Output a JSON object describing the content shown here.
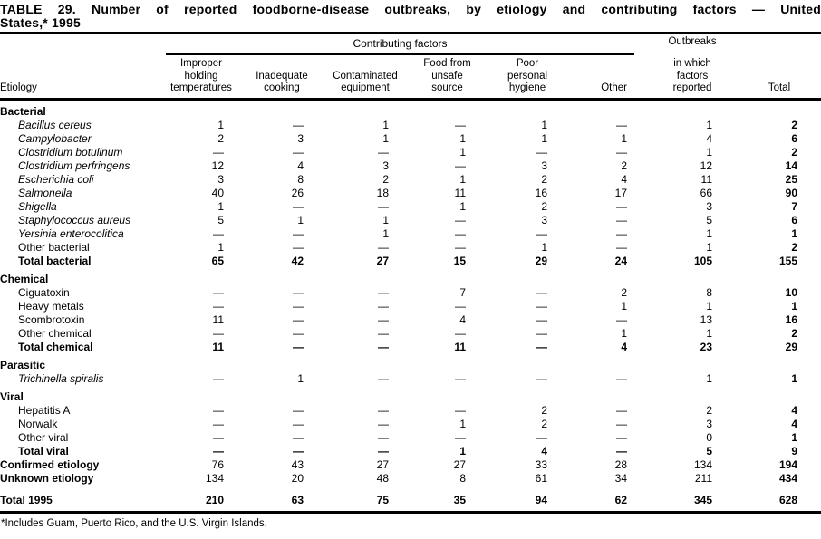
{
  "title": {
    "line1": "TABLE 29. Number of reported foodborne-disease outbreaks, by etiology and contributing factors — United",
    "line2": "States,* 1995"
  },
  "header": {
    "etiology": "Etiology",
    "contributing_factors": "Contributing factors",
    "factor_columns": [
      "Improper\nholding\ntemperatures",
      "Inadequate\ncooking",
      "Contaminated\nequipment",
      "Food from\nunsafe\nsource",
      "Poor\npersonal\nhygiene",
      "Other"
    ],
    "outbreaks_top": "Outbreaks",
    "outbreaks_rest": "in which\nfactors\nreported",
    "total": "Total"
  },
  "rows": [
    {
      "type": "section",
      "label": "Bacterial"
    },
    {
      "type": "item",
      "italic": true,
      "label": "Bacillus cereus",
      "values": [
        "1",
        "—",
        "1",
        "—",
        "1",
        "—",
        "1",
        "2"
      ]
    },
    {
      "type": "item",
      "italic": true,
      "label": "Campylobacter",
      "values": [
        "2",
        "3",
        "1",
        "1",
        "1",
        "1",
        "4",
        "6"
      ]
    },
    {
      "type": "item",
      "italic": true,
      "label": "Clostridium botulinum",
      "values": [
        "—",
        "—",
        "—",
        "1",
        "—",
        "—",
        "1",
        "2"
      ]
    },
    {
      "type": "item",
      "italic": true,
      "label": "Clostridium perfringens",
      "values": [
        "12",
        "4",
        "3",
        "—",
        "3",
        "2",
        "12",
        "14"
      ]
    },
    {
      "type": "item",
      "italic": true,
      "label": "Escherichia coli",
      "values": [
        "3",
        "8",
        "2",
        "1",
        "2",
        "4",
        "11",
        "25"
      ]
    },
    {
      "type": "item",
      "italic": true,
      "label": "Salmonella",
      "values": [
        "40",
        "26",
        "18",
        "11",
        "16",
        "17",
        "66",
        "90"
      ]
    },
    {
      "type": "item",
      "italic": true,
      "label": "Shigella",
      "values": [
        "1",
        "—",
        "—",
        "1",
        "2",
        "—",
        "3",
        "7"
      ]
    },
    {
      "type": "item",
      "italic": true,
      "label": "Staphylococcus aureus",
      "values": [
        "5",
        "1",
        "1",
        "—",
        "3",
        "—",
        "5",
        "6"
      ]
    },
    {
      "type": "item",
      "italic": true,
      "label": "Yersinia enterocolitica",
      "values": [
        "—",
        "—",
        "1",
        "—",
        "—",
        "—",
        "1",
        "1"
      ]
    },
    {
      "type": "item",
      "italic": false,
      "label": "Other bacterial",
      "values": [
        "1",
        "—",
        "—",
        "—",
        "1",
        "—",
        "1",
        "2"
      ]
    },
    {
      "type": "total",
      "label": "Total bacterial",
      "values": [
        "65",
        "42",
        "27",
        "15",
        "29",
        "24",
        "105",
        "155"
      ]
    },
    {
      "type": "section",
      "label": "Chemical"
    },
    {
      "type": "item",
      "italic": false,
      "label": "Ciguatoxin",
      "values": [
        "—",
        "—",
        "—",
        "7",
        "—",
        "2",
        "8",
        "10"
      ]
    },
    {
      "type": "item",
      "italic": false,
      "label": "Heavy metals",
      "values": [
        "—",
        "—",
        "—",
        "—",
        "—",
        "1",
        "1",
        "1"
      ]
    },
    {
      "type": "item",
      "italic": false,
      "label": "Scombrotoxin",
      "values": [
        "11",
        "—",
        "—",
        "4",
        "—",
        "—",
        "13",
        "16"
      ]
    },
    {
      "type": "item",
      "italic": false,
      "label": "Other chemical",
      "values": [
        "—",
        "—",
        "—",
        "—",
        "—",
        "1",
        "1",
        "2"
      ]
    },
    {
      "type": "total",
      "label": "Total chemical",
      "values": [
        "11",
        "—",
        "—",
        "11",
        "—",
        "4",
        "23",
        "29"
      ]
    },
    {
      "type": "section",
      "label": "Parasitic"
    },
    {
      "type": "item",
      "italic": true,
      "label": "Trichinella spiralis",
      "values": [
        "—",
        "1",
        "—",
        "—",
        "—",
        "—",
        "1",
        "1"
      ]
    },
    {
      "type": "section",
      "label": "Viral"
    },
    {
      "type": "item",
      "italic": false,
      "label": "Hepatitis A",
      "values": [
        "—",
        "—",
        "—",
        "—",
        "2",
        "—",
        "2",
        "4"
      ]
    },
    {
      "type": "item",
      "italic": false,
      "label": "Norwalk",
      "values": [
        "—",
        "—",
        "—",
        "1",
        "2",
        "—",
        "3",
        "4"
      ]
    },
    {
      "type": "item",
      "italic": false,
      "label": "Other viral",
      "values": [
        "—",
        "—",
        "—",
        "—",
        "—",
        "—",
        "0",
        "1"
      ]
    },
    {
      "type": "total",
      "label": "Total viral",
      "values": [
        "—",
        "—",
        "—",
        "1",
        "4",
        "—",
        "5",
        "9"
      ]
    },
    {
      "type": "summary",
      "label": "Confirmed etiology",
      "values": [
        "76",
        "43",
        "27",
        "27",
        "33",
        "28",
        "134",
        "194"
      ]
    },
    {
      "type": "summary",
      "label": "Unknown etiology",
      "values": [
        "134",
        "20",
        "48",
        "8",
        "61",
        "34",
        "211",
        "434"
      ]
    },
    {
      "type": "grand",
      "label": "Total 1995",
      "values": [
        "210",
        "63",
        "75",
        "35",
        "94",
        "62",
        "345",
        "628"
      ]
    }
  ],
  "footnote": "*Includes Guam, Puerto Rico, and the U.S. Virgin Islands."
}
